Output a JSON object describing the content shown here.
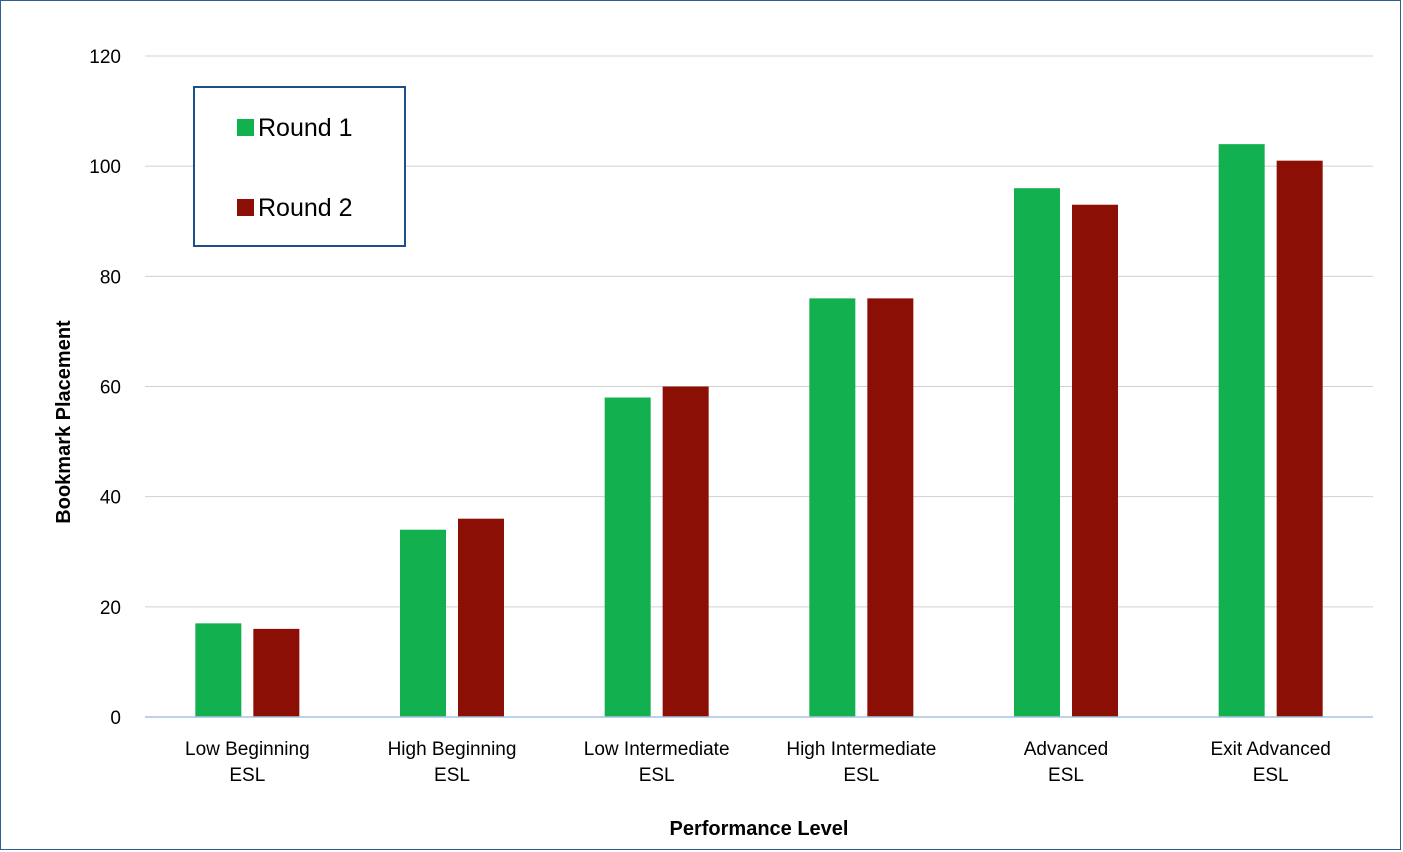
{
  "chart_data": {
    "type": "bar",
    "categories": [
      [
        "Low Beginning",
        "ESL"
      ],
      [
        "High Beginning",
        "ESL"
      ],
      [
        "Low Intermediate",
        "ESL"
      ],
      [
        "High Intermediate",
        "ESL"
      ],
      [
        "Advanced",
        "ESL"
      ],
      [
        "Exit Advanced",
        "ESL"
      ]
    ],
    "series": [
      {
        "name": "Round 1",
        "color": "#12b04e",
        "values": [
          17,
          34,
          58,
          76,
          96,
          104
        ]
      },
      {
        "name": "Round 2",
        "color": "#8b0f05",
        "values": [
          16,
          36,
          60,
          76,
          93,
          101
        ]
      }
    ],
    "xlabel": "Performance Level",
    "ylabel": "Bookmark Placement",
    "ylim": [
      0,
      120
    ],
    "yticks": [
      0,
      20,
      40,
      60,
      80,
      100,
      120
    ],
    "grid": true,
    "legend_position": "top-left"
  }
}
